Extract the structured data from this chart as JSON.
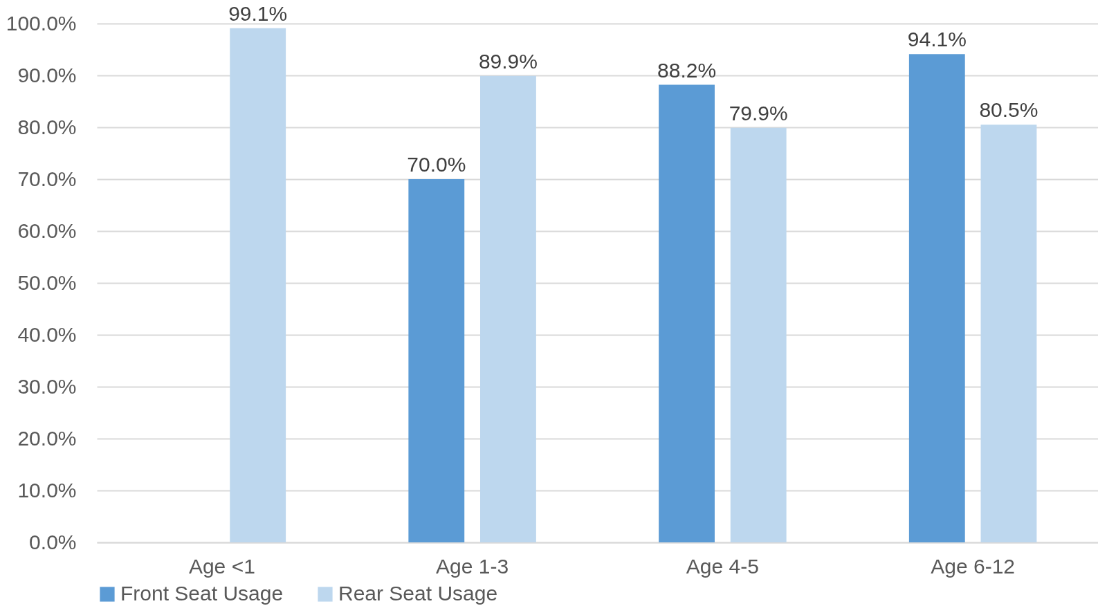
{
  "chart_data": {
    "type": "bar",
    "categories": [
      "Age <1",
      "Age 1-3",
      "Age 4-5",
      "Age 6-12"
    ],
    "series": [
      {
        "name": "Front Seat Usage",
        "color": "#5b9bd5",
        "values": [
          null,
          70.0,
          88.2,
          94.1
        ],
        "value_labels": [
          null,
          "70.0%",
          "88.2%",
          "94.1%"
        ]
      },
      {
        "name": "Rear Seat Usage",
        "color": "#bdd7ee",
        "values": [
          99.1,
          89.9,
          79.9,
          80.5
        ],
        "value_labels": [
          "99.1%",
          "89.9%",
          "79.9%",
          "80.5%"
        ]
      }
    ],
    "ylim": [
      0,
      100
    ],
    "yticks": [
      {
        "value": 0,
        "label": "0.0%"
      },
      {
        "value": 10,
        "label": "10.0%"
      },
      {
        "value": 20,
        "label": "20.0%"
      },
      {
        "value": 30,
        "label": "30.0%"
      },
      {
        "value": 40,
        "label": "40.0%"
      },
      {
        "value": 50,
        "label": "50.0%"
      },
      {
        "value": 60,
        "label": "60.0%"
      },
      {
        "value": 70,
        "label": "70.0%"
      },
      {
        "value": 80,
        "label": "80.0%"
      },
      {
        "value": 90,
        "label": "90.0%"
      },
      {
        "value": 100,
        "label": "100.0%"
      }
    ],
    "grid": "y",
    "legend": "bottom"
  }
}
